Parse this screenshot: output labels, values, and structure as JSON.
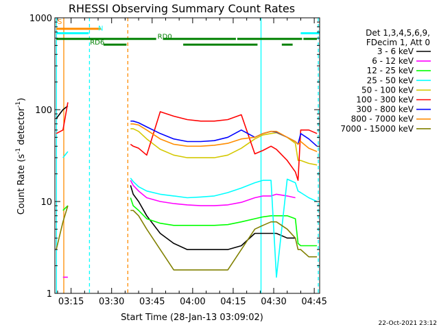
{
  "chart_data": {
    "type": "line",
    "title": "RHESSI Observing Summary Count Rates",
    "xlabel": "Start Time (28-Jan-13 03:09:02)",
    "ylabel": "Count Rate (s⁻¹ detector⁻¹)",
    "ylabel_base": "Count Rate (s",
    "ylabel_exp1": "-1",
    "ylabel_mid": " detector",
    "ylabel_exp2": "-1",
    "ylabel_end": ")",
    "y_scale": "log",
    "ylim": [
      1,
      1000
    ],
    "xlim_minutes": [
      189,
      287
    ],
    "x_ticks": [
      {
        "m": 195,
        "label": "03:15"
      },
      {
        "m": 210,
        "label": "03:30"
      },
      {
        "m": 225,
        "label": "03:45"
      },
      {
        "m": 240,
        "label": "04:00"
      },
      {
        "m": 255,
        "label": "04:15"
      },
      {
        "m": 270,
        "label": "04:30"
      },
      {
        "m": 285,
        "label": "04:45"
      }
    ],
    "y_ticks": [
      {
        "v": 1,
        "label": "1"
      },
      {
        "v": 10,
        "label": "10"
      },
      {
        "v": 100,
        "label": "100"
      },
      {
        "v": 1000,
        "label": "1000"
      }
    ],
    "legend_header": [
      "Det 1,3,4,5,6,9,",
      "FDecim 1, Att 0"
    ],
    "legend_placement": "right",
    "series": [
      {
        "name": "3 - 6 keV",
        "color": "#000000",
        "x": [
          189.5,
          192,
          193.8,
          194,
          217,
          218,
          220,
          223,
          228,
          233,
          238,
          243,
          248,
          253,
          258,
          263,
          266,
          269,
          271,
          275,
          278,
          279
        ],
        "y": [
          80,
          100,
          110,
          null,
          15,
          12,
          10,
          7,
          4.5,
          3.5,
          3,
          3,
          3,
          3,
          3.3,
          4.5,
          4.5,
          4.5,
          4.5,
          4,
          4,
          null
        ]
      },
      {
        "name": "6 - 12 keV",
        "color": "#ff00ff",
        "x": [
          189.5,
          192,
          193.8,
          194,
          217,
          218,
          220,
          223,
          228,
          233,
          238,
          243,
          248,
          253,
          258,
          263,
          266,
          269,
          271,
          275,
          278,
          279,
          280,
          283,
          286
        ],
        "y": [
          null,
          1.5,
          1.5,
          null,
          17,
          15,
          13,
          11,
          10,
          9.5,
          9.2,
          9,
          9,
          9.2,
          9.8,
          11,
          11.5,
          11.5,
          12,
          11.5,
          11,
          null,
          null,
          null,
          null
        ]
      },
      {
        "name": "12 - 25 keV",
        "color": "#00ff00",
        "x": [
          189.5,
          192,
          193.8,
          194,
          217,
          218,
          220,
          223,
          228,
          233,
          238,
          243,
          248,
          253,
          258,
          263,
          266,
          269,
          271,
          275,
          278,
          279,
          280,
          283,
          286
        ],
        "y": [
          null,
          8,
          9,
          null,
          11,
          9,
          8,
          6.5,
          5.8,
          5.5,
          5.5,
          5.5,
          5.5,
          5.6,
          6,
          6.5,
          6.8,
          7,
          7,
          7,
          6.5,
          3.5,
          3.3,
          3.3,
          3.3
        ]
      },
      {
        "name": "25 - 50 keV",
        "color": "#00ffff",
        "x": [
          189.5,
          192,
          193.8,
          194,
          217,
          218,
          220,
          223,
          228,
          233,
          238,
          243,
          248,
          253,
          258,
          263,
          266,
          269,
          271,
          275,
          278,
          279,
          280,
          283,
          286
        ],
        "y": [
          null,
          30,
          35,
          null,
          18,
          16.5,
          14.5,
          13,
          12,
          11.5,
          11,
          11.2,
          11.5,
          12.5,
          14,
          16,
          17,
          17,
          1.5,
          17.5,
          16,
          13,
          12.5,
          11,
          10
        ]
      },
      {
        "name": "50 - 100 keV",
        "color": "#d4c800",
        "x": [
          189.5,
          192,
          193.8,
          194,
          217,
          218,
          220,
          223,
          228,
          233,
          238,
          243,
          248,
          253,
          258,
          263,
          266,
          269,
          271,
          275,
          278,
          279,
          280,
          283,
          286
        ],
        "y": [
          30,
          null,
          null,
          null,
          62,
          62,
          58,
          48,
          37,
          32,
          30,
          30,
          30,
          32,
          38,
          48,
          53,
          55,
          56,
          50,
          43,
          28,
          28,
          26,
          25
        ]
      },
      {
        "name": "100 - 300 keV",
        "color": "#ff0000",
        "x": [
          189.5,
          192,
          193.8,
          194,
          217,
          218,
          220,
          223,
          228,
          233,
          238,
          243,
          248,
          253,
          258,
          263,
          266,
          269,
          271,
          275,
          278,
          279,
          280,
          283,
          286
        ],
        "y": [
          55,
          60,
          120,
          null,
          42,
          40,
          38,
          32,
          95,
          85,
          78,
          75,
          75,
          78,
          88,
          33,
          36,
          40,
          37,
          28,
          21,
          17,
          60,
          60,
          55
        ]
      },
      {
        "name": "300 - 800 keV",
        "color": "#0000ff",
        "x": [
          189.5,
          192,
          193.8,
          194,
          217,
          218,
          220,
          223,
          228,
          233,
          238,
          243,
          248,
          253,
          258,
          263,
          266,
          269,
          271,
          275,
          278,
          279,
          280,
          283,
          286
        ],
        "y": [
          null,
          null,
          null,
          null,
          75,
          75,
          72,
          65,
          55,
          48,
          45,
          45,
          46,
          50,
          60,
          50,
          55,
          58,
          57,
          50,
          45,
          42,
          55,
          48,
          40
        ]
      },
      {
        "name": "800 - 7000 keV",
        "color": "#ff8c00",
        "x": [
          189.5,
          192,
          193.8,
          194,
          217,
          218,
          220,
          223,
          228,
          233,
          238,
          243,
          248,
          253,
          258,
          263,
          266,
          269,
          271,
          275,
          278,
          279,
          280,
          283,
          286
        ],
        "y": [
          35,
          null,
          null,
          null,
          70,
          70,
          68,
          60,
          48,
          42,
          40,
          40,
          41,
          43,
          48,
          50,
          55,
          58,
          58,
          50,
          45,
          42,
          45,
          38,
          35
        ]
      },
      {
        "name": "7000 - 15000 keV",
        "color": "#808000",
        "x": [
          189.5,
          192,
          193.8,
          194,
          217,
          218,
          220,
          223,
          228,
          233,
          238,
          243,
          248,
          253,
          258,
          263,
          266,
          269,
          271,
          275,
          278,
          279,
          280,
          283,
          286
        ],
        "y": [
          3,
          6,
          9,
          null,
          8,
          8,
          7,
          5,
          3,
          1.8,
          1.8,
          1.8,
          1.8,
          1.8,
          3,
          5,
          5.5,
          6,
          6,
          5,
          4,
          3,
          3,
          2.5,
          2.5
        ]
      }
    ],
    "annotations": [
      {
        "text": "S",
        "color": "#ff8c00",
        "x": 190,
        "y": 860
      },
      {
        "text": "N",
        "color": "#00ffff",
        "x": 205,
        "y": 730
      },
      {
        "text": "RD0",
        "color": "#008000",
        "x": 227,
        "y": 590
      },
      {
        "text": "RD6",
        "color": "#008000",
        "x": 202,
        "y": 510
      }
    ],
    "bars": [
      {
        "color": "#ff8c00",
        "y": 760,
        "segments": [
          [
            189.5,
            206
          ]
        ]
      },
      {
        "color": "#00ffff",
        "y": 680,
        "segments": [
          [
            189.5,
            201.5
          ],
          [
            280,
            287
          ]
        ]
      },
      {
        "color": "#008000",
        "y": 590,
        "segments": [
          [
            189.5,
            226.5
          ],
          [
            229,
            256
          ],
          [
            256.5,
            280.5
          ],
          [
            281,
            286
          ]
        ]
      },
      {
        "color": "#008000",
        "y": 510,
        "segments": [
          [
            207,
            215.5
          ],
          [
            236.5,
            264
          ],
          [
            273,
            277
          ]
        ]
      }
    ],
    "vlines": [
      {
        "m": 192.3,
        "color": "#ff8c00",
        "dashed": false
      },
      {
        "m": 201.8,
        "color": "#00ffff",
        "dashed": true
      },
      {
        "m": 216.0,
        "color": "#ff8c00",
        "dashed": true
      },
      {
        "m": 265.3,
        "color": "#00ffff",
        "dashed": false
      },
      {
        "m": 286.5,
        "color": "#00ffff",
        "dashed": true
      },
      {
        "m": 189.6,
        "color": "#00ffff",
        "dashed": false
      }
    ],
    "footer_date": "22-Oct-2021 23:12"
  }
}
